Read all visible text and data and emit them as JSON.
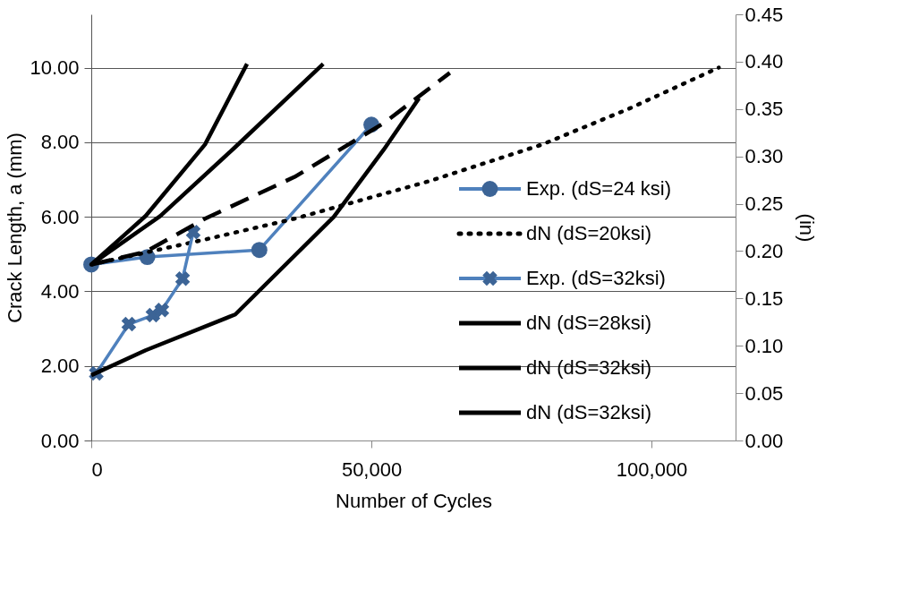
{
  "chart_data": {
    "type": "line",
    "xlabel": "Number of Cycles",
    "ylabel": "Crack Length, a (mm)",
    "y2label": "(in)",
    "xlim": [
      0,
      115000
    ],
    "xticks": [
      {
        "value": 0,
        "label": "0"
      },
      {
        "value": 50000,
        "label": "50,000"
      },
      {
        "value": 100000,
        "label": "100,000"
      }
    ],
    "ylim": [
      0,
      11.43
    ],
    "yticks": [
      {
        "value": 0,
        "label": "0.00"
      },
      {
        "value": 2,
        "label": "2.00"
      },
      {
        "value": 4,
        "label": "4.00"
      },
      {
        "value": 6,
        "label": "6.00"
      },
      {
        "value": 8,
        "label": "8.00"
      },
      {
        "value": 10,
        "label": "10.00"
      }
    ],
    "y2lim": [
      0,
      0.45
    ],
    "y2ticks": [
      {
        "value": 0,
        "label": "0.00"
      },
      {
        "value": 0.05,
        "label": "0.05"
      },
      {
        "value": 0.1,
        "label": "0.10"
      },
      {
        "value": 0.15,
        "label": "0.15"
      },
      {
        "value": 0.2,
        "label": "0.20"
      },
      {
        "value": 0.25,
        "label": "0.25"
      },
      {
        "value": 0.3,
        "label": "0.30"
      },
      {
        "value": 0.35,
        "label": "0.35"
      },
      {
        "value": 0.4,
        "label": "0.40"
      },
      {
        "value": 0.45,
        "label": "0.45"
      }
    ],
    "grid": "y",
    "legend": "right",
    "series": [
      {
        "name": "Exp. (dS=24 ksi)",
        "color": "#4f81bd",
        "marker": "circle",
        "line_style": "solid",
        "x": [
          0,
          10000,
          30000,
          50000
        ],
        "values": [
          4.72,
          4.92,
          5.11,
          8.47
        ]
      },
      {
        "name": "dN (dS=20ksi)",
        "color": "#000000",
        "marker": "none",
        "line_style": "dotted",
        "x": [
          0,
          20300,
          36300,
          60200,
          80500,
          96000,
          112000
        ],
        "values": [
          4.72,
          5.39,
          5.95,
          6.95,
          7.94,
          8.9,
          10.0
        ]
      },
      {
        "name": "Exp. (dS=32ksi)",
        "color": "#4f81bd",
        "marker": "cross",
        "line_style": "solid",
        "x": [
          900,
          6700,
          11000,
          12600,
          16300,
          18200
        ],
        "values": [
          1.8,
          3.12,
          3.36,
          3.5,
          4.34,
          5.59
        ]
      },
      {
        "name": "dN (dS=28ksi)",
        "color": "#000000",
        "marker": "none",
        "line_style": "solid",
        "x": [
          0,
          12300,
          25700,
          41400
        ],
        "values": [
          4.72,
          6.02,
          7.87,
          10.1
        ]
      },
      {
        "name": "dN (dS=32ksi)",
        "color": "#000000",
        "marker": "none",
        "line_style": "solid",
        "x": [
          0,
          9700,
          20300,
          27800
        ],
        "values": [
          4.72,
          6.02,
          7.94,
          10.1
        ]
      },
      {
        "name": "dN (dS=32ksi)",
        "color": "#000000",
        "marker": "none",
        "line_style": "solid",
        "x": [
          0,
          9700,
          25700,
          43300,
          52200,
          58500
        ],
        "values": [
          1.75,
          2.42,
          3.38,
          6.0,
          7.8,
          9.18
        ]
      },
      {
        "color": "#000000",
        "marker": "none",
        "line_style": "dashed",
        "x": [
          0,
          9700,
          20300,
          36300,
          52200,
          64000
        ],
        "values": [
          4.72,
          5.06,
          5.95,
          7.07,
          8.51,
          9.86
        ]
      }
    ]
  }
}
